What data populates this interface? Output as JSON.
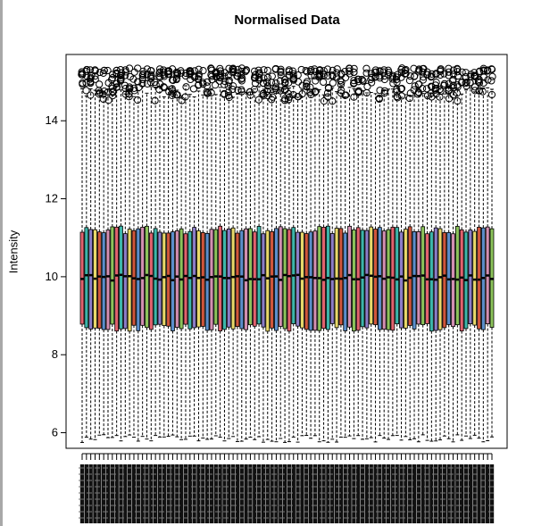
{
  "chart_data": {
    "type": "boxplot",
    "title": "Normalised Data",
    "xlabel": "",
    "ylabel": "Intensity",
    "ylim": [
      5.6,
      15.7
    ],
    "yticks": [
      6,
      8,
      10,
      12,
      14
    ],
    "n_samples": 96,
    "summary": {
      "whisker_low_range": [
        5.75,
        5.95
      ],
      "q1_range": [
        8.6,
        8.8
      ],
      "median_range": [
        9.9,
        10.05
      ],
      "q3_range": [
        11.1,
        11.3
      ],
      "whisker_high_range": [
        14.6,
        14.9
      ],
      "outliers_range": [
        14.5,
        15.35
      ]
    },
    "box_colors": [
      "#e2626e",
      "#3cb6aa",
      "#8c7dc8",
      "#e8d96a",
      "#d0563b",
      "#5b8fcc",
      "#d38fb2",
      "#8cc35b"
    ],
    "outlier_marker": "open-circle",
    "x_tick_labels_legible": false,
    "grid": false
  }
}
